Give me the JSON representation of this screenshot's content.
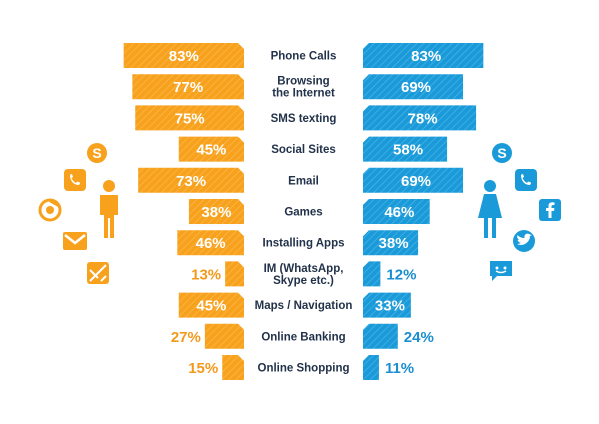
{
  "chart_data": {
    "type": "bar",
    "orientation": "diverging-horizontal",
    "categories": [
      "Phone Calls",
      "Browsing the Internet",
      "SMS texting",
      "Social Sites",
      "Email",
      "Games",
      "Installing Apps",
      "IM (WhatsApp, Skype etc.)",
      "Maps / Navigation",
      "Online Banking",
      "Online Shopping"
    ],
    "category_lines": [
      [
        "Phone Calls"
      ],
      [
        "Browsing",
        "the Internet"
      ],
      [
        "SMS texting"
      ],
      [
        "Social Sites"
      ],
      [
        "Email"
      ],
      [
        "Games"
      ],
      [
        "Installing Apps"
      ],
      [
        "IM (WhatsApp,",
        "Skype etc.)"
      ],
      [
        "Maps / Navigation"
      ],
      [
        "Online Banking"
      ],
      [
        "Online Shopping"
      ]
    ],
    "series": [
      {
        "values": [
          83,
          77,
          75,
          45,
          73,
          38,
          46,
          13,
          45,
          27,
          15
        ],
        "color": "#f7a11d",
        "label_color_outside": "#f39a1c"
      },
      {
        "values": [
          83,
          69,
          78,
          58,
          69,
          46,
          38,
          12,
          33,
          24,
          11
        ],
        "color": "#1a9ad8",
        "label_color_outside": "#1a8fd0"
      }
    ],
    "value_suffix": "%",
    "xlim": [
      0,
      100
    ],
    "grid": false,
    "legend": "none"
  },
  "icons": {
    "left_person": "male-person-icon",
    "right_person": "female-person-icon",
    "left_apps": [
      "skype-icon",
      "phone-icon",
      "chrome-icon",
      "gmail-icon",
      "maps-icon"
    ],
    "right_apps": [
      "skype-icon",
      "phone-icon",
      "facebook-icon",
      "twitter-icon",
      "chat-icon"
    ]
  }
}
